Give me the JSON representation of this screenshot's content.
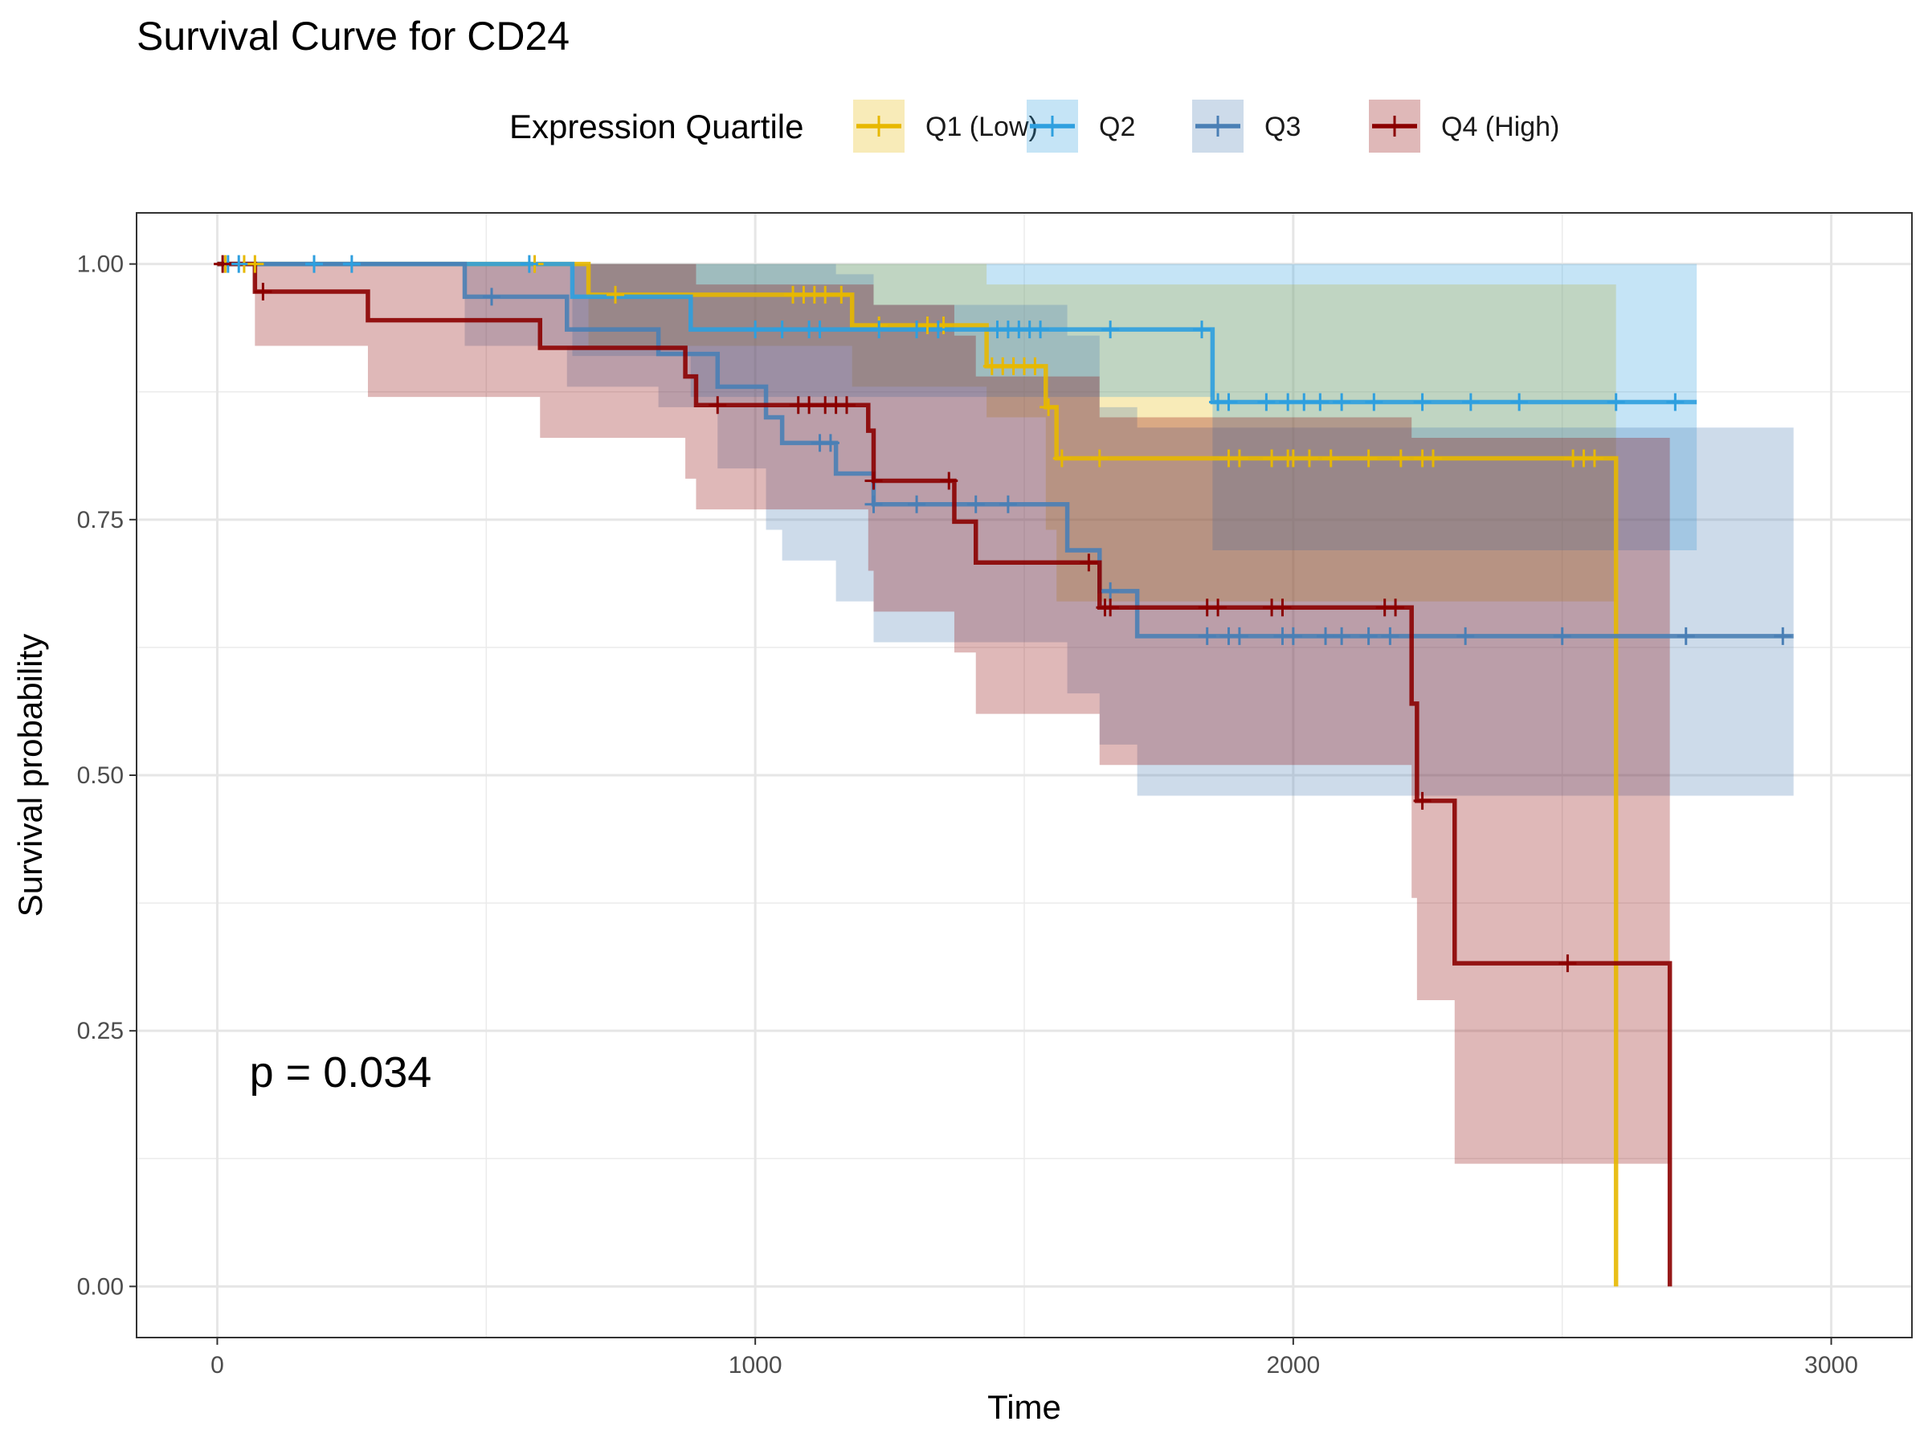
{
  "chart_data": {
    "type": "line",
    "subtype": "kaplan-meier",
    "title": "Survival Curve for CD24",
    "xlabel": "Time",
    "ylabel": "Survival probability",
    "xlim": [
      -150,
      3150
    ],
    "ylim": [
      -0.05,
      1.05
    ],
    "x_ticks": [
      0,
      1000,
      2000,
      3000
    ],
    "x_tick_labels": [
      "0",
      "1000",
      "2000",
      "3000"
    ],
    "y_ticks": [
      0,
      0.25,
      0.5,
      0.75,
      1.0
    ],
    "y_tick_labels": [
      "0.00",
      "0.25",
      "0.50",
      "0.75",
      "1.00"
    ],
    "grid": true,
    "legend": {
      "title": "Expression Quartile",
      "position": "top"
    },
    "annotation": {
      "text": "p = 0.034",
      "x": 60,
      "y": 0.195
    },
    "series": [
      {
        "name": "Q1 (Low)",
        "color": "#E7B800",
        "steps": [
          [
            0,
            1.0
          ],
          [
            690,
            0.97
          ],
          [
            1180,
            0.94
          ],
          [
            1430,
            0.9
          ],
          [
            1540,
            0.86
          ],
          [
            1560,
            0.81
          ],
          [
            2600,
            0.0
          ]
        ],
        "ci": [
          [
            0,
            1.0,
            1.0
          ],
          [
            690,
            0.92,
            1.0
          ],
          [
            1180,
            0.88,
            1.0
          ],
          [
            1430,
            0.85,
            0.98
          ],
          [
            1540,
            0.74,
            0.98
          ],
          [
            1560,
            0.67,
            0.98
          ],
          [
            2600,
            0.67,
            0.98
          ]
        ],
        "censor": [
          15,
          50,
          70,
          590,
          740,
          1070,
          1090,
          1110,
          1130,
          1160,
          1230,
          1320,
          1350,
          1440,
          1460,
          1480,
          1500,
          1520,
          1545,
          1570,
          1640,
          1880,
          1900,
          1960,
          1990,
          2000,
          2030,
          2070,
          2140,
          2200,
          2240,
          2260,
          2520,
          2540,
          2560
        ],
        "end": 2600
      },
      {
        "name": "Q2",
        "color": "#2E9FDF",
        "steps": [
          [
            0,
            1.0
          ],
          [
            660,
            0.968
          ],
          [
            880,
            0.936
          ],
          [
            1850,
            0.865
          ]
        ],
        "ci": [
          [
            0,
            1.0,
            1.0
          ],
          [
            660,
            0.91,
            1.0
          ],
          [
            880,
            0.87,
            1.0
          ],
          [
            1850,
            0.72,
            1.0
          ]
        ],
        "censor": [
          20,
          40,
          180,
          250,
          580,
          1000,
          1050,
          1100,
          1120,
          1230,
          1300,
          1340,
          1450,
          1470,
          1490,
          1510,
          1530,
          1660,
          1830,
          1860,
          1880,
          1950,
          1990,
          2020,
          2050,
          2090,
          2150,
          2240,
          2330,
          2420,
          2600,
          2710
        ],
        "end": 2750
      },
      {
        "name": "Q3",
        "color": "#4A7FB5",
        "steps": [
          [
            0,
            1.0
          ],
          [
            460,
            0.968
          ],
          [
            650,
            0.936
          ],
          [
            820,
            0.912
          ],
          [
            930,
            0.88
          ],
          [
            1020,
            0.85
          ],
          [
            1050,
            0.825
          ],
          [
            1150,
            0.795
          ],
          [
            1220,
            0.765
          ],
          [
            1580,
            0.72
          ],
          [
            1640,
            0.68
          ],
          [
            1710,
            0.636
          ]
        ],
        "ci": [
          [
            0,
            1.0,
            1.0
          ],
          [
            460,
            0.92,
            1.0
          ],
          [
            650,
            0.88,
            1.0
          ],
          [
            820,
            0.86,
            1.0
          ],
          [
            930,
            0.8,
            1.0
          ],
          [
            1020,
            0.74,
            1.0
          ],
          [
            1050,
            0.71,
            1.0
          ],
          [
            1150,
            0.67,
            0.99
          ],
          [
            1220,
            0.63,
            0.96
          ],
          [
            1580,
            0.58,
            0.93
          ],
          [
            1640,
            0.53,
            0.86
          ],
          [
            1710,
            0.48,
            0.84
          ]
        ],
        "censor": [
          510,
          1120,
          1140,
          1220,
          1300,
          1410,
          1470,
          1660,
          1840,
          1880,
          1900,
          1980,
          2000,
          2060,
          2090,
          2140,
          2180,
          2320,
          2500,
          2730,
          2910
        ],
        "end": 2930
      },
      {
        "name": "Q4 (High)",
        "color": "#8B0000",
        "steps": [
          [
            0,
            1.0
          ],
          [
            70,
            0.973
          ],
          [
            280,
            0.945
          ],
          [
            600,
            0.918
          ],
          [
            870,
            0.89
          ],
          [
            890,
            0.862
          ],
          [
            1210,
            0.837
          ],
          [
            1220,
            0.788
          ],
          [
            1370,
            0.748
          ],
          [
            1410,
            0.708
          ],
          [
            1640,
            0.664
          ],
          [
            2220,
            0.57
          ],
          [
            2230,
            0.475
          ],
          [
            2300,
            0.316
          ],
          [
            2700,
            0.0
          ]
        ],
        "ci": [
          [
            0,
            1.0,
            1.0
          ],
          [
            70,
            0.92,
            1.0
          ],
          [
            280,
            0.87,
            1.0
          ],
          [
            600,
            0.83,
            1.0
          ],
          [
            870,
            0.79,
            1.0
          ],
          [
            890,
            0.76,
            0.98
          ],
          [
            1210,
            0.7,
            0.98
          ],
          [
            1220,
            0.66,
            0.96
          ],
          [
            1370,
            0.62,
            0.93
          ],
          [
            1410,
            0.56,
            0.89
          ],
          [
            1640,
            0.51,
            0.85
          ],
          [
            2220,
            0.38,
            0.83
          ],
          [
            2230,
            0.28,
            0.83
          ],
          [
            2300,
            0.12,
            0.83
          ],
          [
            2700,
            0.12,
            0.83
          ]
        ],
        "censor": [
          10,
          85,
          930,
          1080,
          1100,
          1130,
          1150,
          1170,
          1220,
          1360,
          1620,
          1650,
          1660,
          1840,
          1860,
          1960,
          1980,
          2170,
          2190,
          2240,
          2510
        ],
        "end": 2700
      }
    ]
  }
}
